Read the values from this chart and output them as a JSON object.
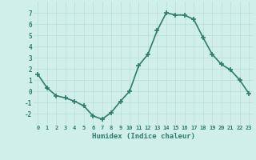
{
  "x": [
    0,
    1,
    2,
    3,
    4,
    5,
    6,
    7,
    8,
    9,
    10,
    11,
    12,
    13,
    14,
    15,
    16,
    17,
    18,
    19,
    20,
    21,
    22,
    23
  ],
  "y": [
    1.5,
    0.3,
    -0.4,
    -0.6,
    -0.9,
    -1.3,
    -2.2,
    -2.5,
    -1.9,
    -0.9,
    0.0,
    2.3,
    3.3,
    5.4,
    7.0,
    6.8,
    6.8,
    6.4,
    4.8,
    3.3,
    2.4,
    1.9,
    1.0,
    -0.2
  ],
  "xlim": [
    -0.5,
    23.5
  ],
  "ylim": [
    -3,
    8
  ],
  "yticks": [
    -2,
    -1,
    0,
    1,
    2,
    3,
    4,
    5,
    6,
    7
  ],
  "xtick_labels": [
    "0",
    "1",
    "2",
    "3",
    "4",
    "5",
    "6",
    "7",
    "8",
    "9",
    "10",
    "11",
    "12",
    "13",
    "14",
    "15",
    "16",
    "17",
    "18",
    "19",
    "20",
    "21",
    "22",
    "23"
  ],
  "xlabel": "Humidex (Indice chaleur)",
  "line_color": "#2e7d6e",
  "marker": "+",
  "bg_color": "#d0eeea",
  "grid_color": "#b8ddd8",
  "text_color": "#2e7d6e",
  "linewidth": 1.2,
  "markersize": 4,
  "markeredgewidth": 1.2
}
